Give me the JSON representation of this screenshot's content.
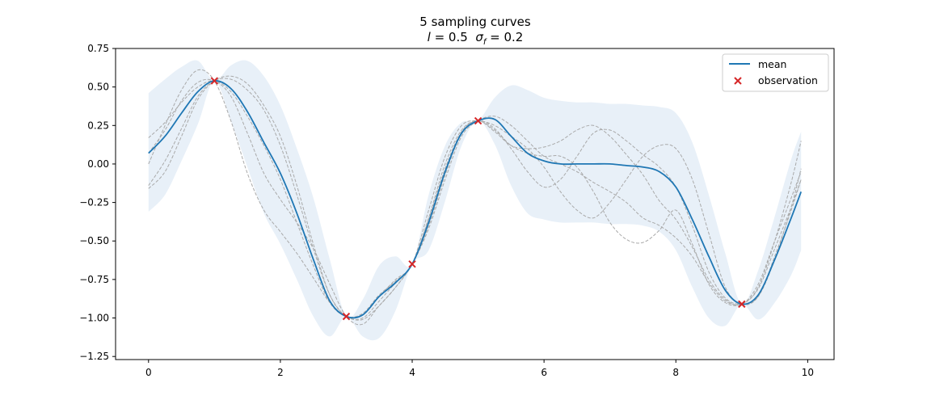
{
  "chart_data": {
    "type": "line",
    "title": "5 sampling curves",
    "subtitle": "l = 0.5  σ_f = 0.2",
    "subtitle_parts": {
      "l_symbol": "l",
      "l_eq": " = 0.5  ",
      "sigma_symbol": "σ",
      "sigma_sub": "f",
      "sigma_eq": " = 0.2"
    },
    "xlabel": "",
    "ylabel": "",
    "xlim": [
      -0.5,
      10.4
    ],
    "ylim": [
      -1.27,
      0.75
    ],
    "xticks": [
      0,
      2,
      4,
      6,
      8,
      10
    ],
    "xtick_labels": [
      "0",
      "2",
      "4",
      "6",
      "8",
      "10"
    ],
    "yticks": [
      -1.25,
      -1.0,
      -0.75,
      -0.5,
      -0.25,
      0.0,
      0.25,
      0.5,
      0.75
    ],
    "ytick_labels": [
      "−1.25",
      "−1.00",
      "−0.75",
      "−0.50",
      "−0.25",
      "0.00",
      "0.25",
      "0.50",
      "0.75"
    ],
    "grid": false,
    "legend": {
      "placement": "top-right",
      "entries": [
        {
          "label": "mean",
          "kind": "line"
        },
        {
          "label": "observation",
          "kind": "marker"
        }
      ]
    },
    "colors": {
      "mean": "#1f77b4",
      "band": "#e8f0f8",
      "samples": "#a9a9a9",
      "observation": "#d62728"
    },
    "observations": {
      "x": [
        1,
        3,
        4,
        5,
        9
      ],
      "y": [
        0.54,
        -0.99,
        -0.65,
        0.28,
        -0.91
      ]
    },
    "mean": {
      "x": [
        0,
        0.25,
        0.5,
        0.75,
        1.0,
        1.25,
        1.5,
        1.75,
        2.0,
        2.25,
        2.5,
        2.75,
        3.0,
        3.25,
        3.5,
        3.75,
        4.0,
        4.25,
        4.5,
        4.75,
        5.0,
        5.25,
        5.5,
        5.75,
        6.0,
        6.25,
        6.5,
        6.75,
        7.0,
        7.25,
        7.5,
        7.75,
        8.0,
        8.25,
        8.5,
        8.75,
        9.0,
        9.25,
        9.5,
        9.75,
        9.9
      ],
      "y": [
        0.07,
        0.18,
        0.33,
        0.47,
        0.54,
        0.49,
        0.34,
        0.14,
        -0.06,
        -0.32,
        -0.62,
        -0.89,
        -0.99,
        -0.98,
        -0.86,
        -0.77,
        -0.65,
        -0.38,
        -0.05,
        0.2,
        0.28,
        0.29,
        0.18,
        0.07,
        0.02,
        0.0,
        0.0,
        0.0,
        0.0,
        -0.01,
        -0.02,
        -0.05,
        -0.15,
        -0.36,
        -0.6,
        -0.82,
        -0.91,
        -0.85,
        -0.62,
        -0.35,
        -0.18
      ]
    },
    "confidence_band": {
      "x": [
        0,
        0.25,
        0.5,
        0.75,
        1.0,
        1.25,
        1.5,
        1.75,
        2.0,
        2.25,
        2.5,
        2.75,
        3.0,
        3.25,
        3.5,
        3.75,
        4.0,
        4.25,
        4.5,
        4.75,
        5.0,
        5.25,
        5.5,
        5.75,
        6.0,
        6.25,
        6.5,
        6.75,
        7.0,
        7.25,
        7.5,
        7.75,
        8.0,
        8.25,
        8.5,
        8.75,
        9.0,
        9.25,
        9.5,
        9.75,
        9.9
      ],
      "upper": [
        0.46,
        0.55,
        0.63,
        0.67,
        0.54,
        0.64,
        0.67,
        0.57,
        0.38,
        0.1,
        -0.22,
        -0.62,
        -0.99,
        -0.88,
        -0.66,
        -0.6,
        -0.65,
        -0.2,
        0.12,
        0.27,
        0.28,
        0.43,
        0.51,
        0.48,
        0.43,
        0.41,
        0.4,
        0.4,
        0.39,
        0.39,
        0.38,
        0.37,
        0.33,
        0.14,
        -0.2,
        -0.58,
        -0.91,
        -0.69,
        -0.34,
        0.03,
        0.21
      ],
      "lower": [
        -0.31,
        -0.2,
        0.02,
        0.26,
        0.54,
        0.28,
        -0.02,
        -0.32,
        -0.52,
        -0.75,
        -0.99,
        -1.12,
        -0.99,
        -1.12,
        -1.13,
        -0.95,
        -0.65,
        -0.56,
        -0.24,
        0.12,
        0.28,
        0.13,
        -0.14,
        -0.32,
        -0.36,
        -0.38,
        -0.38,
        -0.38,
        -0.39,
        -0.39,
        -0.4,
        -0.44,
        -0.56,
        -0.8,
        -1.0,
        -1.05,
        -0.91,
        -1.01,
        -0.9,
        -0.72,
        -0.56
      ]
    },
    "series": [
      {
        "x": [
          0,
          0.25,
          0.5,
          0.75,
          1.0,
          1.25,
          1.5,
          1.75,
          2.0,
          2.25,
          2.5,
          2.75,
          3.0,
          3.25,
          3.5,
          3.75,
          4.0,
          4.25,
          4.5,
          4.75,
          5.0,
          5.25,
          5.5,
          5.75,
          6.0,
          6.25,
          6.5,
          6.75,
          7.0,
          7.25,
          7.5,
          7.75,
          8.0,
          8.25,
          8.5,
          8.75,
          9.0,
          9.25,
          9.5,
          9.75,
          9.9
        ],
        "y": [
          0.17,
          0.27,
          0.4,
          0.5,
          0.54,
          0.47,
          0.31,
          0.12,
          -0.1,
          -0.38,
          -0.66,
          -0.9,
          -0.99,
          -0.97,
          -0.85,
          -0.76,
          -0.65,
          -0.36,
          -0.03,
          0.21,
          0.28,
          0.21,
          0.12,
          0.1,
          0.11,
          0.15,
          0.22,
          0.25,
          0.18,
          0.06,
          -0.07,
          -0.24,
          -0.36,
          -0.54,
          -0.75,
          -0.88,
          -0.91,
          -0.78,
          -0.5,
          -0.22,
          -0.05
        ]
      },
      {
        "x": [
          0,
          0.25,
          0.5,
          0.75,
          1.0,
          1.25,
          1.5,
          1.75,
          2.0,
          2.25,
          2.5,
          2.75,
          3.0,
          3.25,
          3.5,
          3.75,
          4.0,
          4.25,
          4.5,
          4.75,
          5.0,
          5.25,
          5.5,
          5.75,
          6.0,
          6.25,
          6.5,
          6.75,
          7.0,
          7.25,
          7.5,
          7.75,
          8.0,
          8.25,
          8.5,
          8.75,
          9.0,
          9.25,
          9.5,
          9.75,
          9.9
        ],
        "y": [
          0.07,
          0.22,
          0.41,
          0.53,
          0.54,
          0.44,
          0.2,
          -0.06,
          -0.23,
          -0.38,
          -0.55,
          -0.78,
          -0.99,
          -1.04,
          -0.92,
          -0.8,
          -0.65,
          -0.42,
          -0.1,
          0.18,
          0.28,
          0.31,
          0.25,
          0.15,
          0.05,
          0.0,
          -0.05,
          -0.12,
          -0.18,
          -0.25,
          -0.35,
          -0.4,
          -0.48,
          -0.6,
          -0.77,
          -0.89,
          -0.91,
          -0.81,
          -0.55,
          -0.28,
          -0.1
        ]
      },
      {
        "x": [
          0,
          0.25,
          0.5,
          0.75,
          1.0,
          1.25,
          1.5,
          1.75,
          2.0,
          2.25,
          2.5,
          2.75,
          3.0,
          3.25,
          3.5,
          3.75,
          4.0,
          4.25,
          4.5,
          4.75,
          5.0,
          5.25,
          5.5,
          5.75,
          6.0,
          6.25,
          6.5,
          6.75,
          7.0,
          7.25,
          7.5,
          7.75,
          8.0,
          8.25,
          8.5,
          8.75,
          9.0,
          9.25,
          9.5,
          9.75,
          9.9
        ],
        "y": [
          0.0,
          0.25,
          0.48,
          0.61,
          0.54,
          0.28,
          -0.06,
          -0.3,
          -0.44,
          -0.58,
          -0.74,
          -0.9,
          -0.99,
          -1.01,
          -0.92,
          -0.8,
          -0.65,
          -0.4,
          -0.07,
          0.2,
          0.28,
          0.23,
          0.1,
          -0.05,
          -0.15,
          -0.1,
          0.05,
          0.2,
          0.22,
          0.15,
          0.06,
          -0.02,
          -0.15,
          -0.4,
          -0.7,
          -0.87,
          -0.91,
          -0.86,
          -0.62,
          -0.28,
          -0.03
        ]
      },
      {
        "x": [
          0,
          0.25,
          0.5,
          0.75,
          1.0,
          1.25,
          1.5,
          1.75,
          2.0,
          2.25,
          2.5,
          2.75,
          3.0,
          3.25,
          3.5,
          3.75,
          4.0,
          4.25,
          4.5,
          4.75,
          5.0,
          5.25,
          5.5,
          5.75,
          6.0,
          6.25,
          6.5,
          6.75,
          7.0,
          7.25,
          7.5,
          7.75,
          8.0,
          8.25,
          8.5,
          8.75,
          9.0,
          9.25,
          9.5,
          9.75,
          9.9
        ],
        "y": [
          -0.14,
          0.02,
          0.23,
          0.44,
          0.54,
          0.55,
          0.48,
          0.35,
          0.12,
          -0.2,
          -0.55,
          -0.85,
          -0.99,
          -1.0,
          -0.89,
          -0.77,
          -0.65,
          -0.35,
          0.0,
          0.22,
          0.28,
          0.22,
          0.12,
          0.07,
          0.05,
          0.05,
          -0.02,
          -0.18,
          -0.38,
          -0.49,
          -0.51,
          -0.43,
          -0.3,
          -0.52,
          -0.78,
          -0.9,
          -0.91,
          -0.8,
          -0.5,
          -0.12,
          0.15
        ]
      },
      {
        "x": [
          0,
          0.25,
          0.5,
          0.75,
          1.0,
          1.25,
          1.5,
          1.75,
          2.0,
          2.25,
          2.5,
          2.75,
          3.0,
          3.25,
          3.5,
          3.75,
          4.0,
          4.25,
          4.5,
          4.75,
          5.0,
          5.25,
          5.5,
          5.75,
          6.0,
          6.25,
          6.5,
          6.75,
          7.0,
          7.25,
          7.5,
          7.75,
          8.0,
          8.25,
          8.5,
          8.75,
          9.0,
          9.25,
          9.5,
          9.75,
          9.9
        ],
        "y": [
          -0.16,
          -0.05,
          0.18,
          0.42,
          0.54,
          0.57,
          0.52,
          0.38,
          0.18,
          -0.14,
          -0.52,
          -0.85,
          -0.99,
          -0.98,
          -0.86,
          -0.75,
          -0.65,
          -0.3,
          0.05,
          0.25,
          0.28,
          0.25,
          0.18,
          0.1,
          -0.02,
          -0.18,
          -0.3,
          -0.35,
          -0.25,
          -0.1,
          0.05,
          0.12,
          0.1,
          -0.1,
          -0.45,
          -0.8,
          -0.91,
          -0.86,
          -0.6,
          -0.3,
          -0.1
        ]
      }
    ]
  }
}
